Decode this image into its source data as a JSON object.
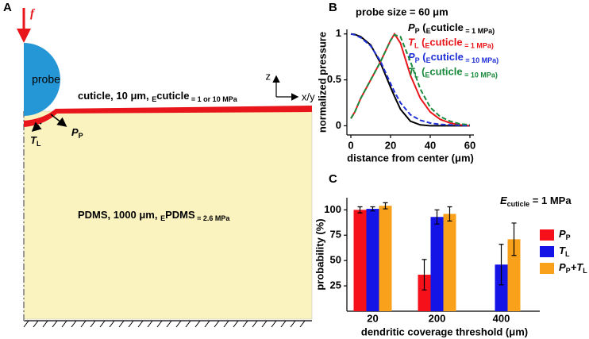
{
  "panel_labels": [
    "A",
    "B",
    "C"
  ],
  "diagram": {
    "force": "f",
    "probe": "probe",
    "cuticle": [
      "cuticle, 10 μm, ",
      "E",
      "cuticle",
      " = 1 or 10 MPa"
    ],
    "axis_z": "z",
    "axis_xy": "x/y",
    "pp": [
      "P",
      "P"
    ],
    "tl": [
      "T",
      "L"
    ],
    "pdms": [
      "PDMS, 1000 μm, ",
      "E",
      "PDMS",
      " = 2.6 MPa"
    ]
  },
  "chart_data": [
    {
      "type": "line",
      "annotation": "probe size = 60 μm",
      "x_label": "distance from center (μm)",
      "y_label": "normalized pressure",
      "x": [
        0,
        2,
        5,
        10,
        15,
        20,
        22,
        25,
        30,
        35,
        40,
        45,
        50,
        55,
        60
      ],
      "series": [
        {
          "name": [
            "P",
            "P",
            " (",
            "E",
            "cuticle",
            " = 1 MPa)"
          ],
          "color": "#000000",
          "dashed": false,
          "values": [
            1,
            0.995,
            0.97,
            0.88,
            0.68,
            0.42,
            0.32,
            0.18,
            0.05,
            0.01,
            0,
            0,
            0,
            0,
            0
          ]
        },
        {
          "name": [
            "T",
            "L",
            " (",
            "E",
            "cuticle",
            " = 1 MPa)"
          ],
          "color": "#e8161b",
          "dashed": false,
          "values": [
            0.08,
            0.15,
            0.3,
            0.5,
            0.7,
            0.93,
            1,
            0.9,
            0.55,
            0.3,
            0.15,
            0.07,
            0.03,
            0.01,
            0
          ]
        },
        {
          "name": [
            "P",
            "P",
            " (",
            "E",
            "cuticle",
            " = 10 MPa)"
          ],
          "color": "#1f2fd6",
          "dashed": true,
          "values": [
            1,
            0.99,
            0.96,
            0.87,
            0.7,
            0.46,
            0.37,
            0.25,
            0.12,
            0.06,
            0.03,
            0.015,
            0.01,
            0.005,
            0
          ]
        },
        {
          "name": [
            "T",
            "L",
            " (",
            "E",
            "cuticle",
            " = 10 MPa)"
          ],
          "color": "#1a8a3c",
          "dashed": true,
          "values": [
            0.08,
            0.15,
            0.3,
            0.5,
            0.7,
            0.93,
            0.99,
            0.97,
            0.7,
            0.4,
            0.2,
            0.1,
            0.05,
            0.02,
            0.01
          ]
        }
      ],
      "xlim": [
        -2,
        62
      ],
      "xticks": [
        0,
        20,
        40,
        60
      ],
      "ylim": [
        -0.1,
        1.05
      ],
      "yticks": [
        0,
        0.5,
        1
      ]
    },
    {
      "type": "bar",
      "annotation": [
        "E",
        "cuticle",
        " = 1 MPa"
      ],
      "x_label": "dendritic coverage threshold (μm)",
      "y_label": "probability (%)",
      "categories": [
        "20",
        "200",
        "400"
      ],
      "series": [
        {
          "name": [
            "P",
            "P"
          ],
          "color": "#f5101a",
          "values": [
            100,
            36,
            null
          ],
          "errors": [
            3,
            15,
            null
          ]
        },
        {
          "name": [
            "T",
            "L"
          ],
          "color": "#1414e6",
          "values": [
            101,
            93,
            46
          ],
          "errors": [
            2,
            7,
            20
          ]
        },
        {
          "name": [
            "P",
            "P",
            "+T",
            "L"
          ],
          "color": "#f9a11b",
          "values": [
            104,
            96,
            71
          ],
          "errors": [
            3,
            7,
            16
          ]
        }
      ],
      "ylim": [
        0,
        112
      ],
      "yticks": [
        25,
        50,
        75,
        100
      ]
    }
  ]
}
